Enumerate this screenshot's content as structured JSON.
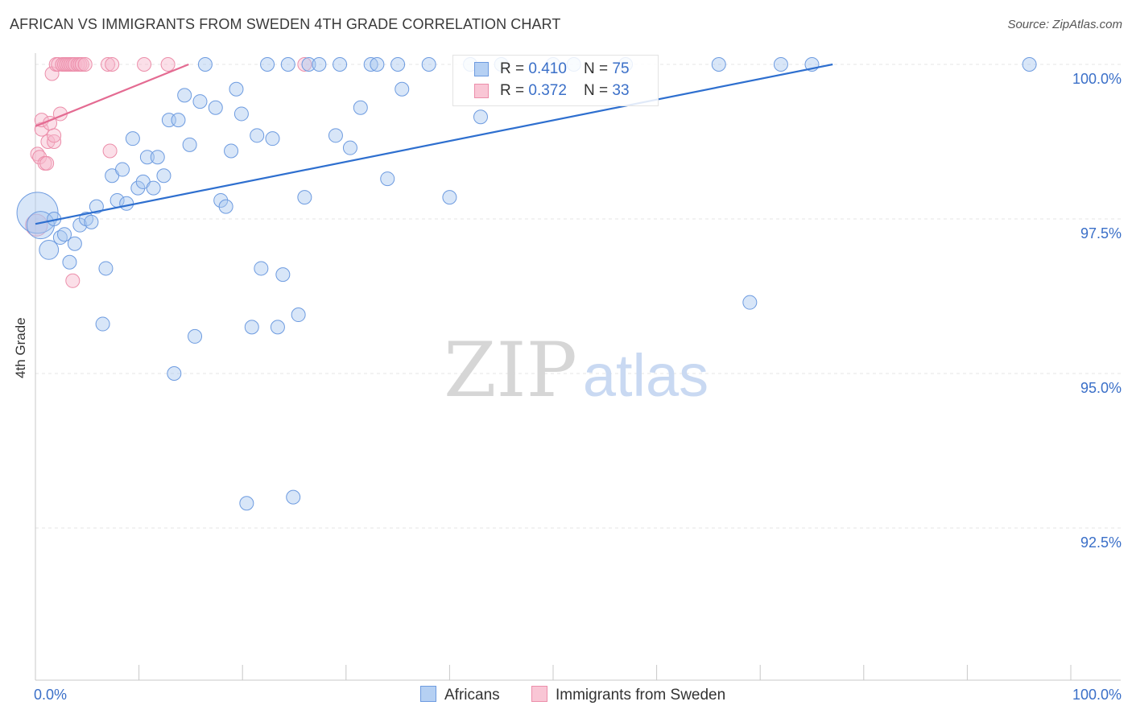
{
  "title": "AFRICAN VS IMMIGRANTS FROM SWEDEN 4TH GRADE CORRELATION CHART",
  "source": "Source: ZipAtlas.com",
  "watermark": {
    "zip": "ZIP",
    "atlas": "atlas"
  },
  "legend": {
    "row1": {
      "r_label": "R = ",
      "r_value": "0.410",
      "n_label": "N = ",
      "n_value": "75"
    },
    "row2": {
      "r_label": "R = ",
      "r_value": "0.372",
      "n_label": "N = ",
      "n_value": "33"
    }
  },
  "bottom_legend": {
    "africans": "Africans",
    "sweden": "Immigrants from Sweden"
  },
  "colors": {
    "africans_fill": "#a9c8f0",
    "africans_stroke": "#6d9be0",
    "africans_line": "#2e6fcf",
    "sweden_fill": "#f7b9cb",
    "sweden_stroke": "#ec8eaa",
    "sweden_line": "#e46b92",
    "tick_label": "#3a6fc8",
    "grid": "#e4e4e4"
  },
  "chart_data": {
    "type": "scatter",
    "title": "AFRICAN VS IMMIGRANTS FROM SWEDEN 4TH GRADE CORRELATION CHART",
    "xlabel": "",
    "ylabel": "4th Grade",
    "xlim": [
      0,
      100
    ],
    "ylim": [
      90.2,
      100.4
    ],
    "x_tick_labels": [
      "0.0%",
      "100.0%"
    ],
    "y_ticks": [
      100.0,
      97.5,
      95.0,
      92.5
    ],
    "y_tick_labels": [
      "100.0%",
      "97.5%",
      "95.0%",
      "92.5%"
    ],
    "series": [
      {
        "name": "Africans",
        "r": 0.41,
        "n": 75,
        "trend": {
          "x": [
            0.0,
            77.0
          ],
          "y": [
            97.42,
            100.0
          ]
        },
        "points": [
          [
            0.2,
            97.6,
            3
          ],
          [
            0.5,
            97.4,
            2
          ],
          [
            1.3,
            97.0,
            1.4
          ],
          [
            1.8,
            97.5,
            1
          ],
          [
            2.4,
            97.2,
            1
          ],
          [
            2.8,
            97.25,
            1
          ],
          [
            3.3,
            96.8,
            1
          ],
          [
            3.8,
            97.1,
            1
          ],
          [
            4.3,
            97.4,
            1
          ],
          [
            4.9,
            97.5,
            1
          ],
          [
            5.4,
            97.45,
            1
          ],
          [
            5.9,
            97.7,
            1
          ],
          [
            6.5,
            95.8,
            1
          ],
          [
            6.8,
            96.7,
            1
          ],
          [
            7.4,
            98.2,
            1
          ],
          [
            7.9,
            97.8,
            1
          ],
          [
            8.4,
            98.3,
            1
          ],
          [
            8.8,
            97.75,
            1
          ],
          [
            9.4,
            98.8,
            1
          ],
          [
            9.9,
            98.0,
            1
          ],
          [
            10.4,
            98.1,
            1
          ],
          [
            10.8,
            98.5,
            1
          ],
          [
            11.4,
            98.0,
            1
          ],
          [
            11.8,
            98.5,
            1
          ],
          [
            12.4,
            98.2,
            1
          ],
          [
            12.9,
            99.1,
            1
          ],
          [
            13.4,
            95.0,
            1
          ],
          [
            13.8,
            99.1,
            1
          ],
          [
            14.4,
            99.5,
            1
          ],
          [
            14.9,
            98.7,
            1
          ],
          [
            15.4,
            95.6,
            1
          ],
          [
            15.9,
            99.4,
            1
          ],
          [
            16.4,
            100.0,
            1
          ],
          [
            17.4,
            99.3,
            1
          ],
          [
            17.9,
            97.8,
            1
          ],
          [
            18.4,
            97.7,
            1
          ],
          [
            18.9,
            98.6,
            1
          ],
          [
            19.4,
            99.6,
            1
          ],
          [
            19.9,
            99.2,
            1
          ],
          [
            20.4,
            92.9,
            1
          ],
          [
            20.9,
            95.75,
            1
          ],
          [
            21.4,
            98.85,
            1
          ],
          [
            21.8,
            96.7,
            1
          ],
          [
            22.4,
            100.0,
            1
          ],
          [
            22.9,
            98.8,
            1
          ],
          [
            23.4,
            95.75,
            1
          ],
          [
            23.9,
            96.6,
            1
          ],
          [
            24.4,
            100.0,
            1
          ],
          [
            24.9,
            93.0,
            1
          ],
          [
            25.4,
            95.95,
            1
          ],
          [
            26.0,
            97.85,
            1
          ],
          [
            26.4,
            100.0,
            1
          ],
          [
            27.4,
            100.0,
            1
          ],
          [
            29.0,
            98.85,
            1
          ],
          [
            29.4,
            100.0,
            1
          ],
          [
            30.4,
            98.65,
            1
          ],
          [
            31.4,
            99.3,
            1
          ],
          [
            32.4,
            100.0,
            1
          ],
          [
            33.0,
            100.0,
            1
          ],
          [
            34.0,
            98.15,
            1
          ],
          [
            35.0,
            100.0,
            1
          ],
          [
            35.4,
            99.6,
            1
          ],
          [
            38.0,
            100.0,
            1
          ],
          [
            40.0,
            97.85,
            1
          ],
          [
            42.0,
            100.0,
            1
          ],
          [
            43.0,
            99.15,
            1
          ],
          [
            45.0,
            100.0,
            1
          ],
          [
            50.0,
            100.0,
            1
          ],
          [
            52.0,
            100.0,
            1
          ],
          [
            57.0,
            100.0,
            1
          ],
          [
            66.0,
            100.0,
            1
          ],
          [
            69.0,
            96.15,
            1
          ],
          [
            72.0,
            100.0,
            1
          ],
          [
            75.0,
            100.0,
            1
          ],
          [
            96.0,
            100.0,
            1
          ]
        ]
      },
      {
        "name": "Immigrants from Sweden",
        "r": 0.372,
        "n": 33,
        "trend": {
          "x": [
            0.0,
            14.8
          ],
          "y": [
            99.0,
            100.0
          ]
        },
        "points": [
          [
            0.1,
            97.4,
            1.6
          ],
          [
            0.2,
            98.55,
            1
          ],
          [
            0.4,
            98.5,
            1
          ],
          [
            0.6,
            98.95,
            1
          ],
          [
            0.6,
            99.1,
            1
          ],
          [
            0.9,
            98.4,
            1
          ],
          [
            1.1,
            98.4,
            1
          ],
          [
            1.2,
            98.75,
            1
          ],
          [
            1.4,
            99.05,
            1
          ],
          [
            1.6,
            99.85,
            1
          ],
          [
            1.8,
            98.75,
            1
          ],
          [
            1.8,
            98.85,
            1
          ],
          [
            2.0,
            100.0,
            1
          ],
          [
            2.2,
            100.0,
            1
          ],
          [
            2.4,
            99.2,
            1
          ],
          [
            2.6,
            100.0,
            1
          ],
          [
            2.8,
            100.0,
            1
          ],
          [
            3.0,
            100.0,
            1
          ],
          [
            3.2,
            100.0,
            1
          ],
          [
            3.4,
            100.0,
            1
          ],
          [
            3.6,
            100.0,
            1
          ],
          [
            3.8,
            100.0,
            1
          ],
          [
            3.6,
            96.5,
            1
          ],
          [
            4.1,
            100.0,
            1
          ],
          [
            4.3,
            100.0,
            1
          ],
          [
            4.5,
            100.0,
            1
          ],
          [
            4.8,
            100.0,
            1
          ],
          [
            7.0,
            100.0,
            1
          ],
          [
            7.2,
            98.6,
            1
          ],
          [
            7.4,
            100.0,
            1
          ],
          [
            10.5,
            100.0,
            1
          ],
          [
            12.8,
            100.0,
            1
          ],
          [
            26.0,
            100.0,
            1
          ]
        ]
      }
    ]
  }
}
